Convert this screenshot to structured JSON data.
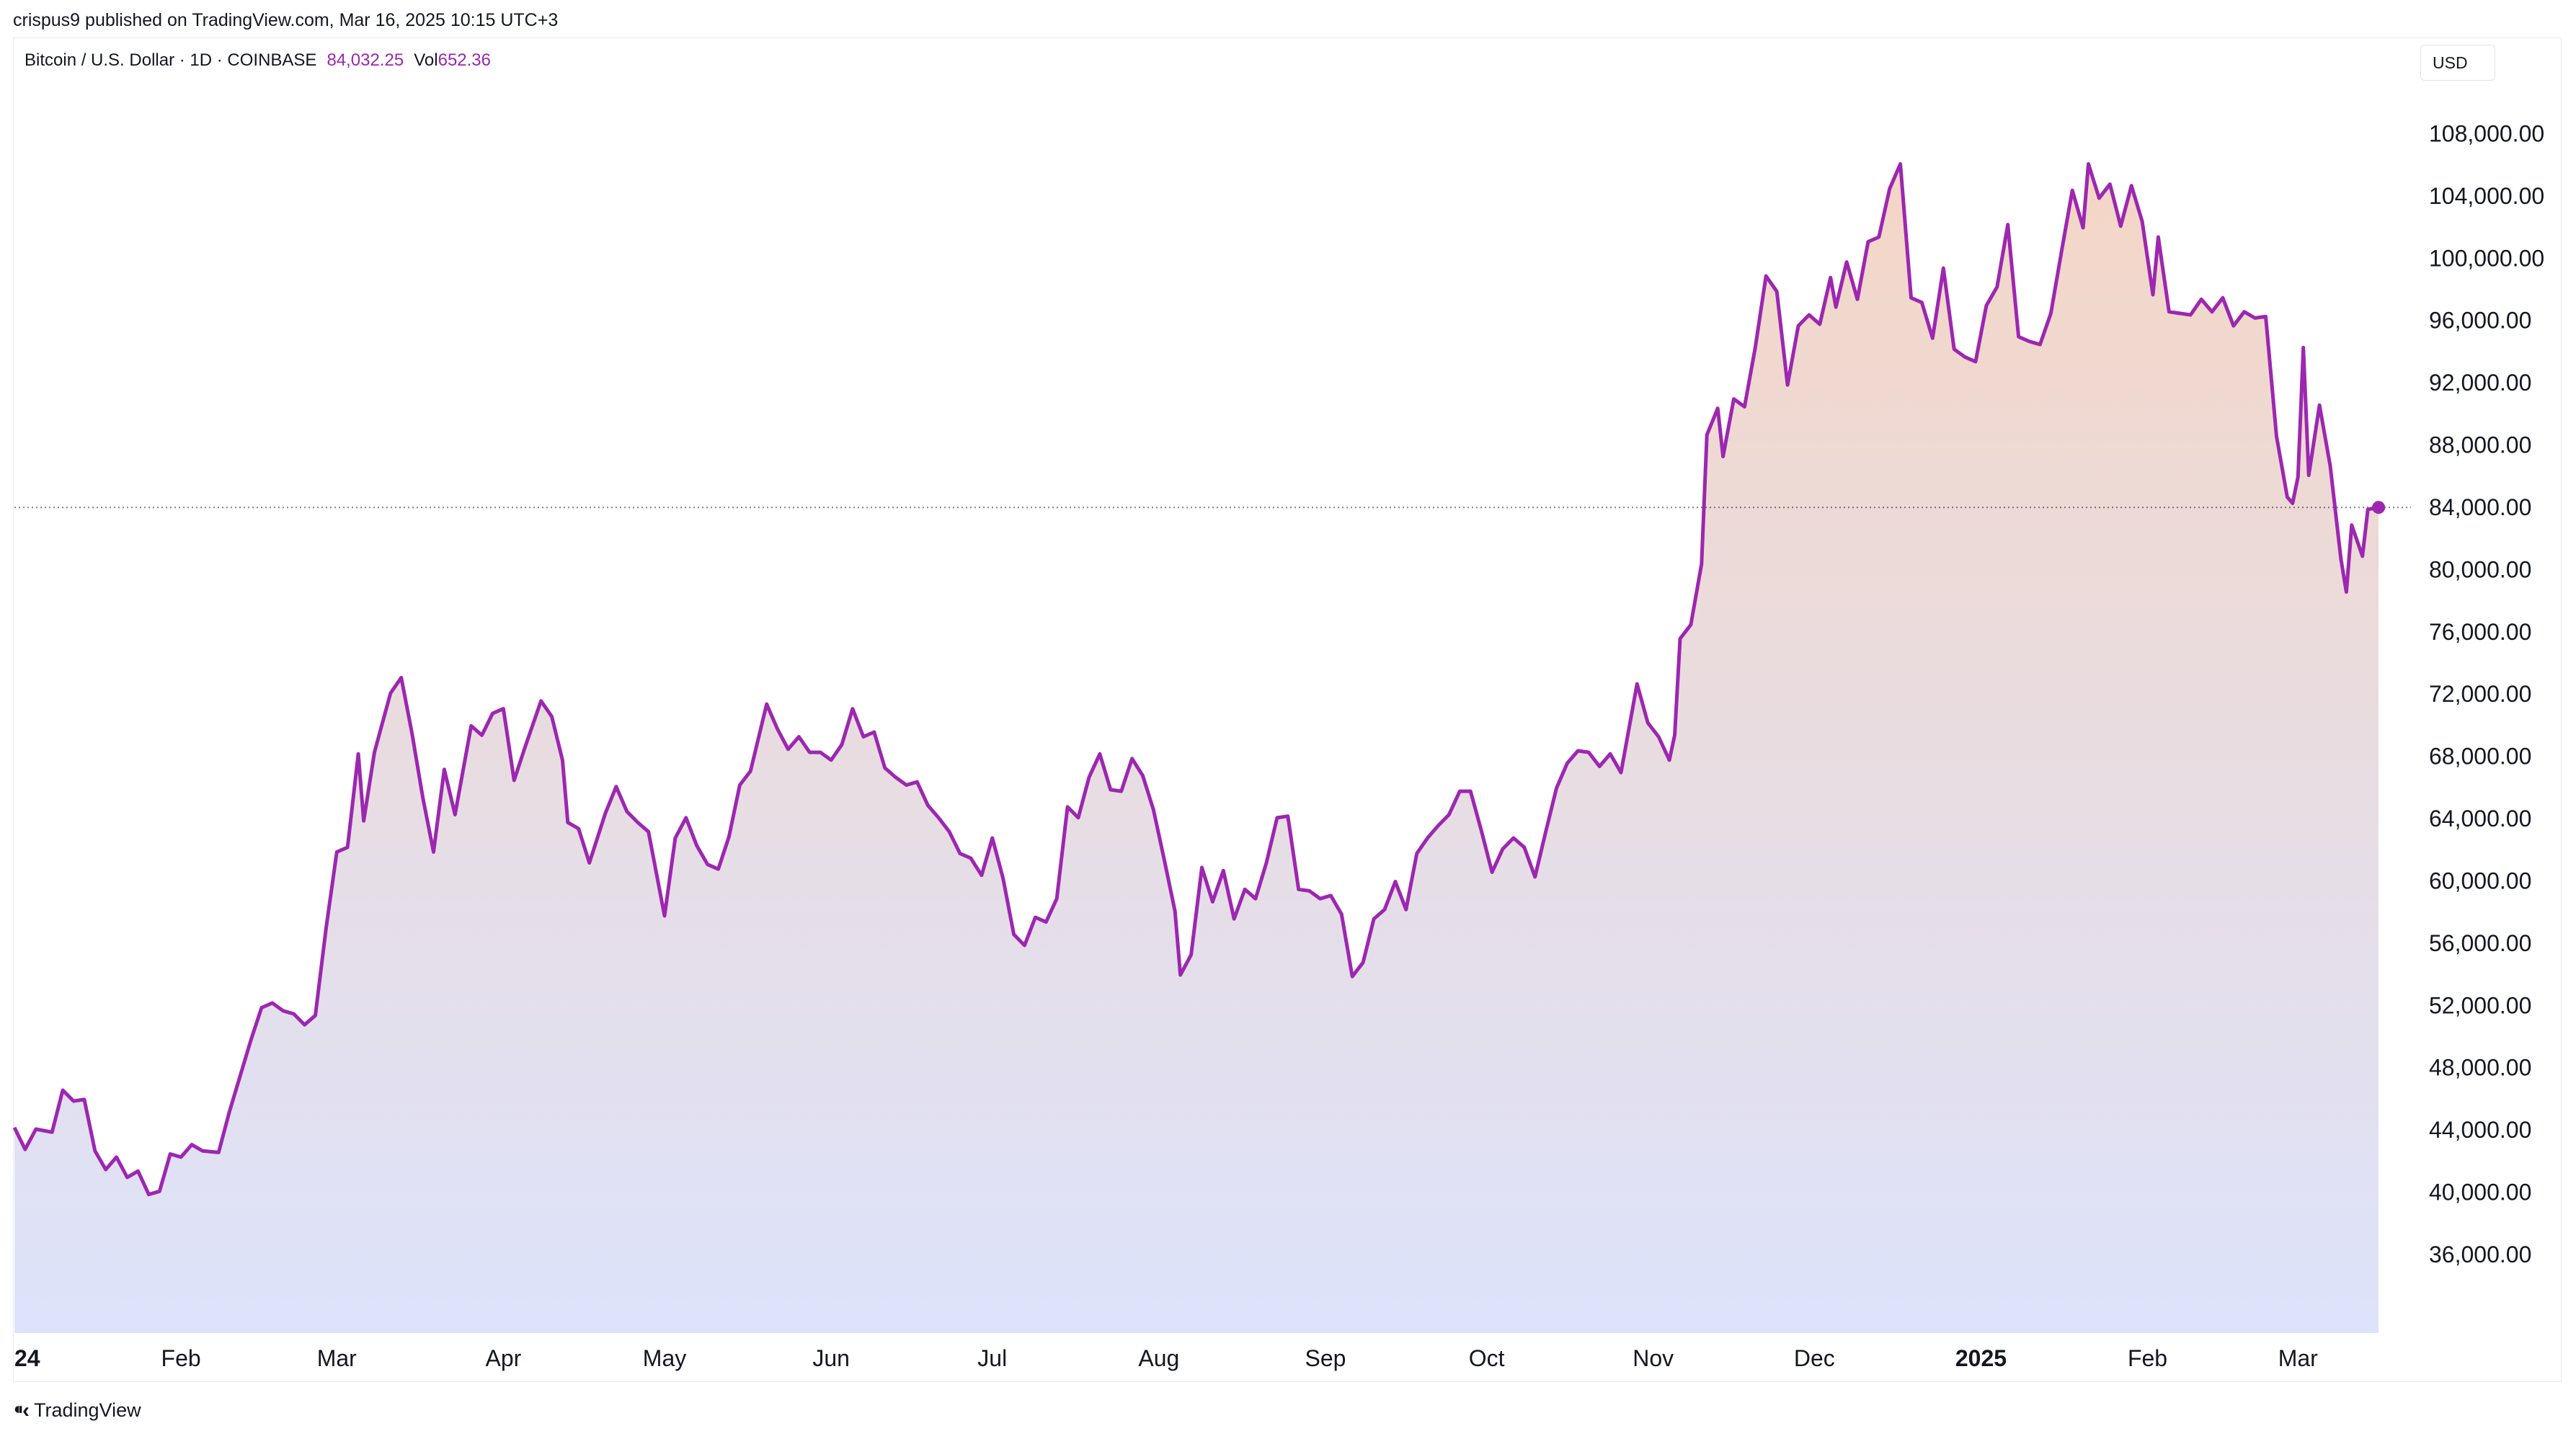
{
  "header": {
    "published": "crispus9 published on TradingView.com, Mar 16, 2025 10:15 UTC+3"
  },
  "legend": {
    "symbol": "Bitcoin / U.S. Dollar · 1D · COINBASE",
    "price": "84,032.25",
    "vol_label": "Vol",
    "vol": "652.36"
  },
  "currency_button": "USD",
  "footer": {
    "brand": "TradingView"
  },
  "colors": {
    "line": "#9c27b0",
    "fill_top": "#f4d6c6",
    "fill_bottom": "#dde3fb",
    "text": "#131722"
  },
  "chart_data": {
    "type": "area",
    "x_axis_type": "date",
    "y_ticks": [
      "108,000.00",
      "104,000.00",
      "100,000.00",
      "96,000.00",
      "92,000.00",
      "88,000.00",
      "84,000.00",
      "80,000.00",
      "76,000.00",
      "72,000.00",
      "68,000.00",
      "64,000.00",
      "60,000.00",
      "56,000.00",
      "52,000.00",
      "48,000.00",
      "44,000.00",
      "40,000.00",
      "36,000.00"
    ],
    "x_ticks": [
      {
        "label": "24",
        "date": "2024-01-01",
        "bold": true
      },
      {
        "label": "Feb",
        "date": "2024-02-01"
      },
      {
        "label": "Mar",
        "date": "2024-03-01"
      },
      {
        "label": "Apr",
        "date": "2024-04-01"
      },
      {
        "label": "May",
        "date": "2024-05-01"
      },
      {
        "label": "Jun",
        "date": "2024-06-01"
      },
      {
        "label": "Jul",
        "date": "2024-07-01"
      },
      {
        "label": "Aug",
        "date": "2024-08-01"
      },
      {
        "label": "Sep",
        "date": "2024-09-01"
      },
      {
        "label": "Oct",
        "date": "2024-10-01"
      },
      {
        "label": "Nov",
        "date": "2024-11-01"
      },
      {
        "label": "Dec",
        "date": "2024-12-01"
      },
      {
        "label": "2025",
        "date": "2025-01-01",
        "bold": true
      },
      {
        "label": "Feb",
        "date": "2025-02-01"
      },
      {
        "label": "Mar",
        "date": "2025-03-01"
      }
    ],
    "ylim": [
      31000,
      112000
    ],
    "xlim": [
      "2024-01-01",
      "2025-03-18"
    ],
    "last_price": 84032.25,
    "series": [
      {
        "points": [
          [
            "2024-01-01",
            44200
          ],
          [
            "2024-01-03",
            42800
          ],
          [
            "2024-01-05",
            44100
          ],
          [
            "2024-01-08",
            43900
          ],
          [
            "2024-01-10",
            46600
          ],
          [
            "2024-01-12",
            45900
          ],
          [
            "2024-01-14",
            46000
          ],
          [
            "2024-01-16",
            42700
          ],
          [
            "2024-01-18",
            41500
          ],
          [
            "2024-01-20",
            42300
          ],
          [
            "2024-01-22",
            41000
          ],
          [
            "2024-01-24",
            41400
          ],
          [
            "2024-01-26",
            39900
          ],
          [
            "2024-01-28",
            40100
          ],
          [
            "2024-01-30",
            42500
          ],
          [
            "2024-02-01",
            42300
          ],
          [
            "2024-02-03",
            43100
          ],
          [
            "2024-02-05",
            42700
          ],
          [
            "2024-02-08",
            42600
          ],
          [
            "2024-02-10",
            45200
          ],
          [
            "2024-02-12",
            47500
          ],
          [
            "2024-02-14",
            49800
          ],
          [
            "2024-02-16",
            51900
          ],
          [
            "2024-02-18",
            52200
          ],
          [
            "2024-02-20",
            51700
          ],
          [
            "2024-02-22",
            51500
          ],
          [
            "2024-02-24",
            50800
          ],
          [
            "2024-02-26",
            51400
          ],
          [
            "2024-02-28",
            57000
          ],
          [
            "2024-03-01",
            61900
          ],
          [
            "2024-03-03",
            62200
          ],
          [
            "2024-03-05",
            68200
          ],
          [
            "2024-03-06",
            63900
          ],
          [
            "2024-03-08",
            68300
          ],
          [
            "2024-03-11",
            72100
          ],
          [
            "2024-03-13",
            73100
          ],
          [
            "2024-03-15",
            69500
          ],
          [
            "2024-03-17",
            65400
          ],
          [
            "2024-03-19",
            61900
          ],
          [
            "2024-03-21",
            67200
          ],
          [
            "2024-03-23",
            64300
          ],
          [
            "2024-03-26",
            70000
          ],
          [
            "2024-03-28",
            69400
          ],
          [
            "2024-03-30",
            70800
          ],
          [
            "2024-04-01",
            71100
          ],
          [
            "2024-04-03",
            66500
          ],
          [
            "2024-04-05",
            68600
          ],
          [
            "2024-04-08",
            71600
          ],
          [
            "2024-04-10",
            70600
          ],
          [
            "2024-04-12",
            67800
          ],
          [
            "2024-04-13",
            63800
          ],
          [
            "2024-04-15",
            63400
          ],
          [
            "2024-04-17",
            61200
          ],
          [
            "2024-04-20",
            64400
          ],
          [
            "2024-04-22",
            66100
          ],
          [
            "2024-04-24",
            64500
          ],
          [
            "2024-04-26",
            63800
          ],
          [
            "2024-04-28",
            63200
          ],
          [
            "2024-05-01",
            57800
          ],
          [
            "2024-05-03",
            62800
          ],
          [
            "2024-05-05",
            64100
          ],
          [
            "2024-05-07",
            62300
          ],
          [
            "2024-05-09",
            61100
          ],
          [
            "2024-05-11",
            60800
          ],
          [
            "2024-05-13",
            62900
          ],
          [
            "2024-05-15",
            66200
          ],
          [
            "2024-05-17",
            67100
          ],
          [
            "2024-05-20",
            71400
          ],
          [
            "2024-05-22",
            69800
          ],
          [
            "2024-05-24",
            68500
          ],
          [
            "2024-05-26",
            69300
          ],
          [
            "2024-05-28",
            68300
          ],
          [
            "2024-05-30",
            68300
          ],
          [
            "2024-06-01",
            67800
          ],
          [
            "2024-06-03",
            68800
          ],
          [
            "2024-06-05",
            71100
          ],
          [
            "2024-06-07",
            69300
          ],
          [
            "2024-06-09",
            69600
          ],
          [
            "2024-06-11",
            67300
          ],
          [
            "2024-06-13",
            66700
          ],
          [
            "2024-06-15",
            66200
          ],
          [
            "2024-06-17",
            66400
          ],
          [
            "2024-06-19",
            64900
          ],
          [
            "2024-06-21",
            64100
          ],
          [
            "2024-06-23",
            63200
          ],
          [
            "2024-06-25",
            61800
          ],
          [
            "2024-06-27",
            61500
          ],
          [
            "2024-06-29",
            60400
          ],
          [
            "2024-07-01",
            62800
          ],
          [
            "2024-07-03",
            60200
          ],
          [
            "2024-07-05",
            56600
          ],
          [
            "2024-07-07",
            55900
          ],
          [
            "2024-07-09",
            57700
          ],
          [
            "2024-07-11",
            57400
          ],
          [
            "2024-07-13",
            58900
          ],
          [
            "2024-07-15",
            64800
          ],
          [
            "2024-07-17",
            64100
          ],
          [
            "2024-07-19",
            66700
          ],
          [
            "2024-07-21",
            68200
          ],
          [
            "2024-07-23",
            65900
          ],
          [
            "2024-07-25",
            65800
          ],
          [
            "2024-07-27",
            67900
          ],
          [
            "2024-07-29",
            66800
          ],
          [
            "2024-07-31",
            64600
          ],
          [
            "2024-08-02",
            61400
          ],
          [
            "2024-08-04",
            58100
          ],
          [
            "2024-08-05",
            54000
          ],
          [
            "2024-08-07",
            55300
          ],
          [
            "2024-08-09",
            60900
          ],
          [
            "2024-08-11",
            58700
          ],
          [
            "2024-08-13",
            60700
          ],
          [
            "2024-08-15",
            57600
          ],
          [
            "2024-08-17",
            59500
          ],
          [
            "2024-08-19",
            58900
          ],
          [
            "2024-08-21",
            61200
          ],
          [
            "2024-08-23",
            64100
          ],
          [
            "2024-08-25",
            64200
          ],
          [
            "2024-08-27",
            59500
          ],
          [
            "2024-08-29",
            59400
          ],
          [
            "2024-08-31",
            58900
          ],
          [
            "2024-09-02",
            59100
          ],
          [
            "2024-09-04",
            57900
          ],
          [
            "2024-09-06",
            53900
          ],
          [
            "2024-09-08",
            54800
          ],
          [
            "2024-09-10",
            57600
          ],
          [
            "2024-09-12",
            58200
          ],
          [
            "2024-09-14",
            60000
          ],
          [
            "2024-09-16",
            58200
          ],
          [
            "2024-09-18",
            61800
          ],
          [
            "2024-09-20",
            62800
          ],
          [
            "2024-09-22",
            63600
          ],
          [
            "2024-09-24",
            64300
          ],
          [
            "2024-09-26",
            65800
          ],
          [
            "2024-09-28",
            65800
          ],
          [
            "2024-09-30",
            63300
          ],
          [
            "2024-10-02",
            60600
          ],
          [
            "2024-10-04",
            62100
          ],
          [
            "2024-10-06",
            62800
          ],
          [
            "2024-10-08",
            62200
          ],
          [
            "2024-10-10",
            60300
          ],
          [
            "2024-10-12",
            63200
          ],
          [
            "2024-10-14",
            66000
          ],
          [
            "2024-10-16",
            67600
          ],
          [
            "2024-10-18",
            68400
          ],
          [
            "2024-10-20",
            68300
          ],
          [
            "2024-10-22",
            67400
          ],
          [
            "2024-10-24",
            68200
          ],
          [
            "2024-10-26",
            67000
          ],
          [
            "2024-10-29",
            72700
          ],
          [
            "2024-10-31",
            70200
          ],
          [
            "2024-11-02",
            69300
          ],
          [
            "2024-11-04",
            67800
          ],
          [
            "2024-11-05",
            69400
          ],
          [
            "2024-11-06",
            75600
          ],
          [
            "2024-11-08",
            76500
          ],
          [
            "2024-11-10",
            80400
          ],
          [
            "2024-11-11",
            88700
          ],
          [
            "2024-11-13",
            90400
          ],
          [
            "2024-11-14",
            87300
          ],
          [
            "2024-11-16",
            91000
          ],
          [
            "2024-11-18",
            90500
          ],
          [
            "2024-11-20",
            94300
          ],
          [
            "2024-11-22",
            98900
          ],
          [
            "2024-11-24",
            97900
          ],
          [
            "2024-11-26",
            91900
          ],
          [
            "2024-11-28",
            95700
          ],
          [
            "2024-11-30",
            96400
          ],
          [
            "2024-12-02",
            95800
          ],
          [
            "2024-12-04",
            98800
          ],
          [
            "2024-12-05",
            96900
          ],
          [
            "2024-12-07",
            99800
          ],
          [
            "2024-12-09",
            97400
          ],
          [
            "2024-12-11",
            101100
          ],
          [
            "2024-12-13",
            101400
          ],
          [
            "2024-12-15",
            104500
          ],
          [
            "2024-12-17",
            106100
          ],
          [
            "2024-12-19",
            97500
          ],
          [
            "2024-12-21",
            97200
          ],
          [
            "2024-12-23",
            94900
          ],
          [
            "2024-12-25",
            99400
          ],
          [
            "2024-12-27",
            94200
          ],
          [
            "2024-12-29",
            93700
          ],
          [
            "2024-12-31",
            93400
          ],
          [
            "2025-01-02",
            97000
          ],
          [
            "2025-01-04",
            98200
          ],
          [
            "2025-01-06",
            102200
          ],
          [
            "2025-01-08",
            95000
          ],
          [
            "2025-01-10",
            94700
          ],
          [
            "2025-01-12",
            94500
          ],
          [
            "2025-01-14",
            96500
          ],
          [
            "2025-01-16",
            100500
          ],
          [
            "2025-01-18",
            104400
          ],
          [
            "2025-01-20",
            102000
          ],
          [
            "2025-01-21",
            106100
          ],
          [
            "2025-01-23",
            103900
          ],
          [
            "2025-01-25",
            104800
          ],
          [
            "2025-01-27",
            102100
          ],
          [
            "2025-01-29",
            104700
          ],
          [
            "2025-01-31",
            102400
          ],
          [
            "2025-02-02",
            97700
          ],
          [
            "2025-02-03",
            101400
          ],
          [
            "2025-02-05",
            96600
          ],
          [
            "2025-02-07",
            96500
          ],
          [
            "2025-02-09",
            96400
          ],
          [
            "2025-02-11",
            97400
          ],
          [
            "2025-02-13",
            96600
          ],
          [
            "2025-02-15",
            97500
          ],
          [
            "2025-02-17",
            95700
          ],
          [
            "2025-02-19",
            96600
          ],
          [
            "2025-02-21",
            96200
          ],
          [
            "2025-02-23",
            96300
          ],
          [
            "2025-02-25",
            88600
          ],
          [
            "2025-02-27",
            84700
          ],
          [
            "2025-02-28",
            84300
          ],
          [
            "2025-03-01",
            86000
          ],
          [
            "2025-03-02",
            94300
          ],
          [
            "2025-03-03",
            86100
          ],
          [
            "2025-03-05",
            90600
          ],
          [
            "2025-03-07",
            86700
          ],
          [
            "2025-03-09",
            80700
          ],
          [
            "2025-03-10",
            78600
          ],
          [
            "2025-03-11",
            82900
          ],
          [
            "2025-03-13",
            80900
          ],
          [
            "2025-03-14",
            83900
          ],
          [
            "2025-03-16",
            84032
          ]
        ]
      }
    ]
  }
}
